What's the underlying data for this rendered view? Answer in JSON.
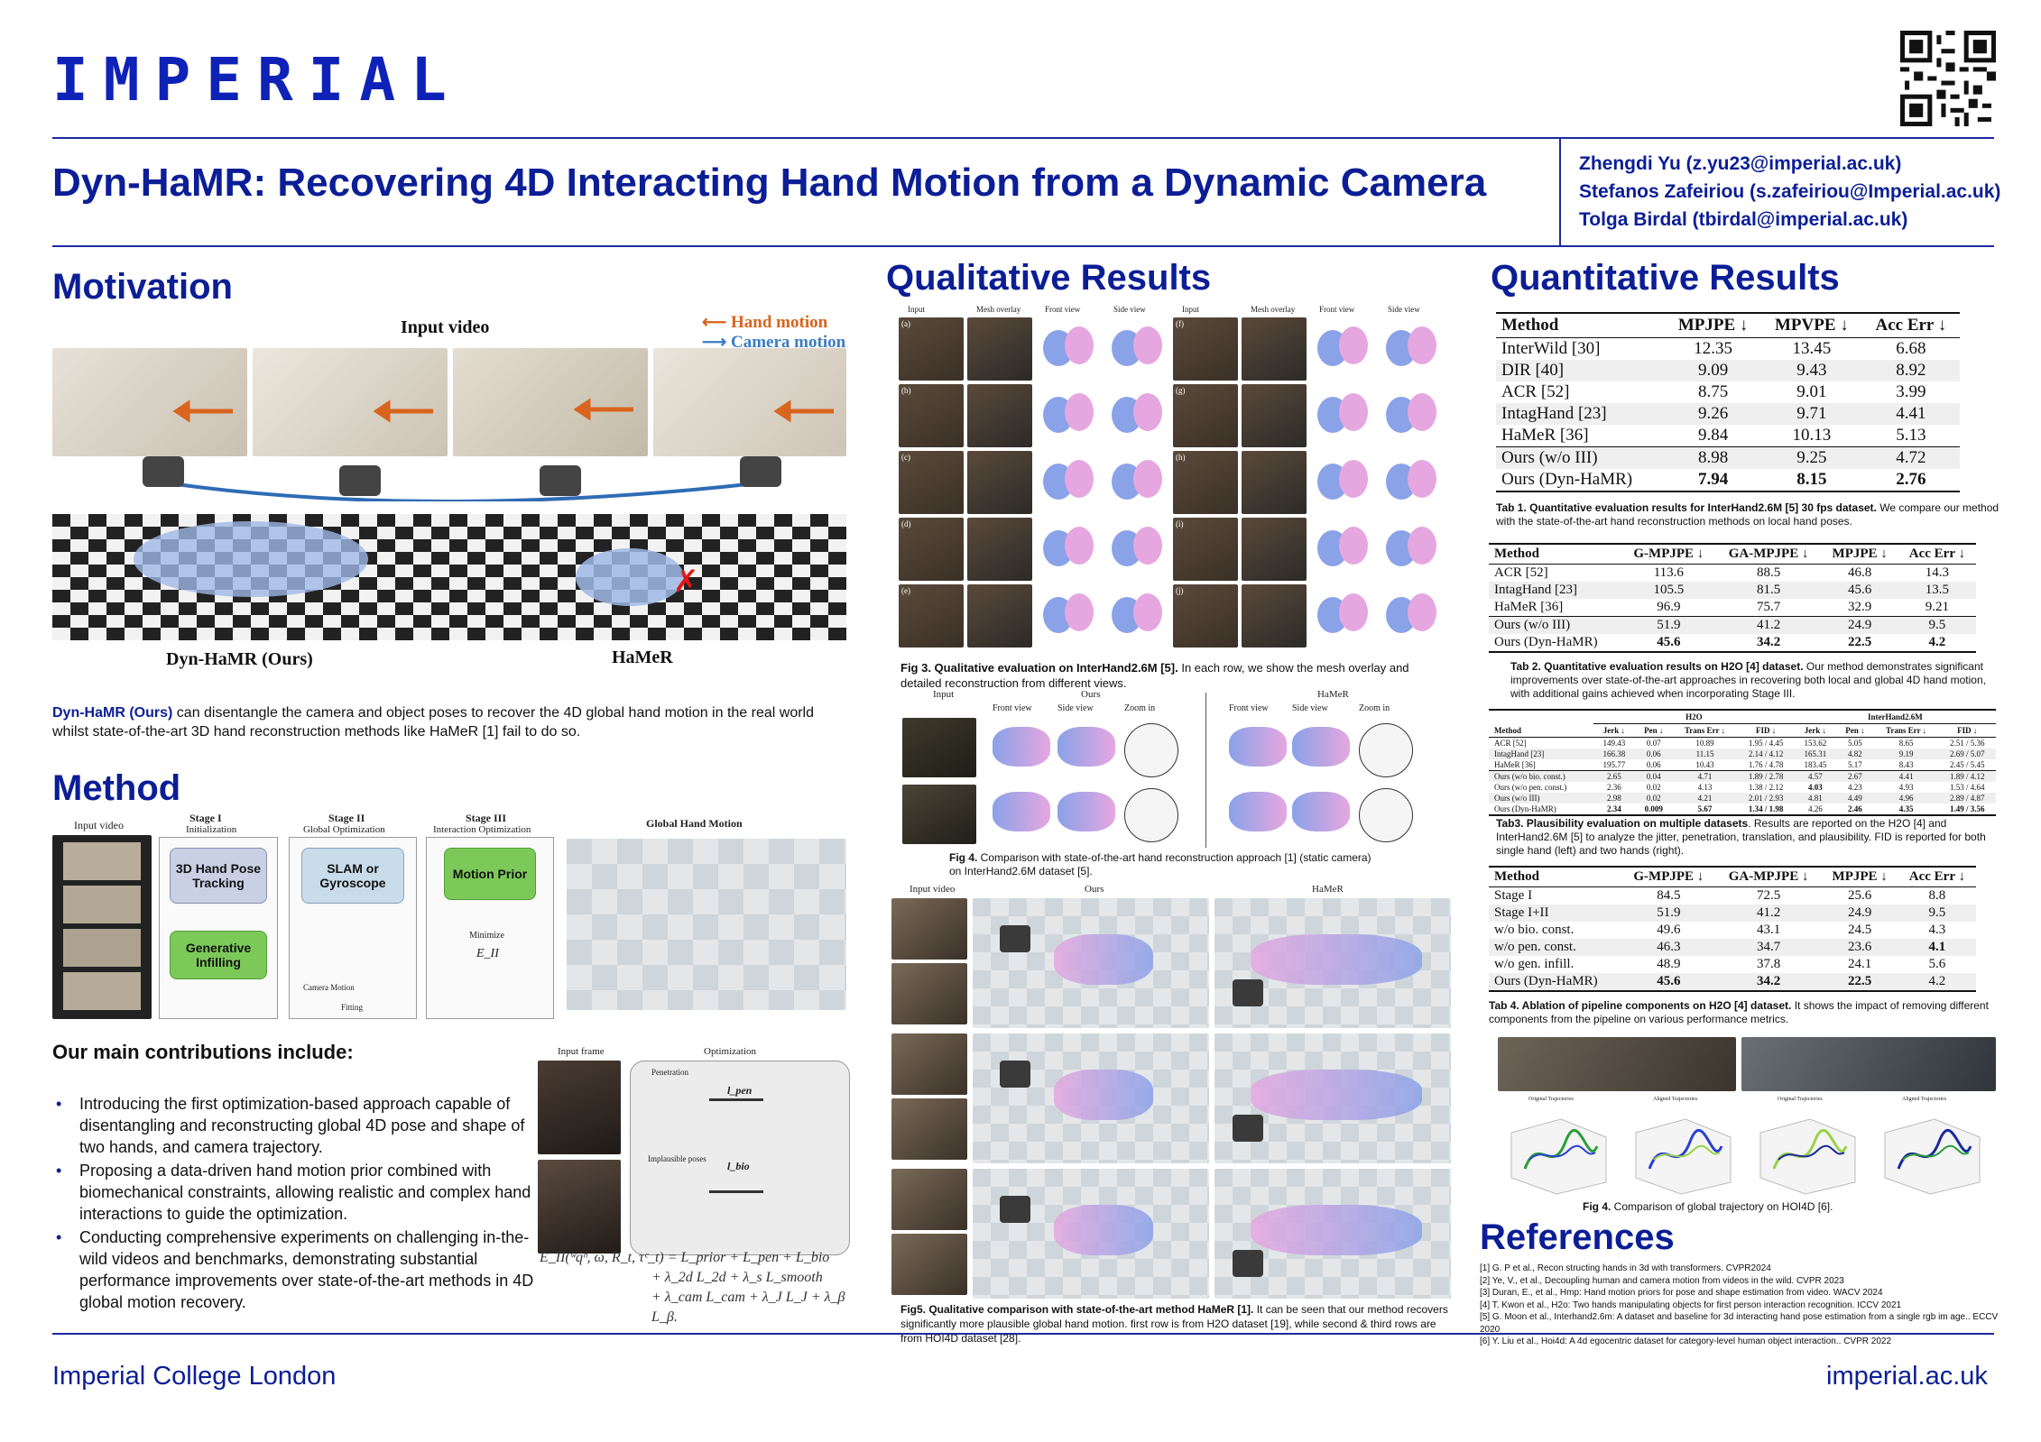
{
  "header": {
    "logo": "IMPERIAL",
    "title": "Dyn-HaMR: Recovering 4D Interacting Hand Motion from a Dynamic Camera",
    "authors": [
      "Zhengdi Yu (z.yu23@imperial.ac.uk)",
      "Stefanos Zafeiriou (s.zafeiriou@Imperial.ac.uk)",
      "Tolga Birdal (tbirdal@imperial.ac.uk)"
    ]
  },
  "motivation": {
    "heading": "Motivation",
    "figure_title": "Input video",
    "legend_hand": "Hand motion",
    "legend_camera": "Camera motion",
    "label_ours": "Dyn-HaMR (Ours)",
    "label_hamer": "HaMeR",
    "text_highlight": "Dyn-HaMR (Ours)",
    "text_rest": " can disentangle the camera and object poses to recover the 4D global hand motion in the real world whilst state-of-the-art 3D hand reconstruction methods like HaMeR [1] fail to do so."
  },
  "method": {
    "heading": "Method",
    "input_label": "Input video",
    "stage1_title": "Stage I",
    "stage1_sub": "Initialization",
    "stage1_box1": "3D Hand Pose Tracking",
    "stage1_box2": "Generative Infilling",
    "stage2_title": "Stage II",
    "stage2_sub": "Global Optimization",
    "stage2_box": "SLAM or Gyroscope",
    "stage2_cam": "Camera Motion",
    "stage2_fit": "Fitting",
    "stage3_title": "Stage III",
    "stage3_sub": "Interaction Optimization",
    "stage3_box": "Motion Prior",
    "stage3_min": "Minimize",
    "stage3_e": "E_II",
    "global_label": "Global Hand Motion",
    "opt_input_label": "Input frame",
    "opt_label": "Optimization",
    "opt_pen": "Penetration",
    "opt_implausible": "Implausible poses",
    "opt_lpen": "l_pen",
    "opt_lbio": "l_bio",
    "equation_lines": [
      "E_II(ʷqʰ, ω, R_t, τᶜ_t) = L_prior + L_pen + L_bio",
      "+ λ_2d L_2d + λ_s L_smooth",
      "+ λ_cam L_cam + λ_J L_J + λ_β L_β."
    ]
  },
  "contributions": {
    "heading": "Our main contributions include:",
    "items": [
      "Introducing the first optimization-based approach capable of disentangling and reconstructing global 4D pose and shape of two hands, and camera trajectory.",
      "Proposing a data-driven hand motion prior combined with biomechanical constraints, allowing realistic and complex hand interactions to guide the optimization.",
      "Conducting comprehensive experiments on challenging in-the-wild videos and benchmarks, demonstrating substantial performance improvements over state-of-the-art methods in 4D global motion recovery."
    ]
  },
  "qualitative": {
    "heading": "Qualitative Results",
    "fig3_cols": [
      "Input",
      "Mesh overlay",
      "Front view",
      "Side view",
      "Input",
      "Mesh overlay",
      "Front view",
      "Side view"
    ],
    "fig3_rows_left": [
      "(a)",
      "(b)",
      "(c)",
      "(d)",
      "(e)"
    ],
    "fig3_rows_right": [
      "(f)",
      "(g)",
      "(h)",
      "(i)",
      "(j)"
    ],
    "fig3_caption_bold": "Fig 3. Qualitative evaluation on InterHand2.6M [5].",
    "fig3_caption_rest": " In each row, we show the mesh overlay and detailed reconstruction from different views.",
    "fig4_group_ours": "Ours",
    "fig4_group_hamer": "HaMeR",
    "fig4_input": "Input",
    "fig4_cols": [
      "Front view",
      "Side view",
      "Zoom in",
      "Front view",
      "Side view",
      "Zoom in"
    ],
    "fig4_caption_bold": "Fig 4.",
    "fig4_caption_rest": " Comparison with state-of-the-art hand reconstruction approach [1] (static camera) on InterHand2.6M dataset [5].",
    "fig5_cols": [
      "Input video",
      "Ours",
      "HaMeR"
    ],
    "fig5_caption_bold": "Fig5. Qualitative comparison with state-of-the-art method HaMeR [1].",
    "fig5_caption_rest": " It can be seen that our method recovers significantly more plausible global hand motion. first row is from H2O dataset [19], while second & third rows are from HOI4D dataset [28]."
  },
  "quantitative": {
    "heading": "Quantitative Results",
    "tab1": {
      "headers": [
        "Method",
        "MPJPE ↓",
        "MPVPE ↓",
        "Acc Err ↓"
      ],
      "rows": [
        [
          "InterWild [30]",
          "12.35",
          "13.45",
          "6.68"
        ],
        [
          "DIR [40]",
          "9.09",
          "9.43",
          "8.92"
        ],
        [
          "ACR [52]",
          "8.75",
          "9.01",
          "3.99"
        ],
        [
          "IntagHand [23]",
          "9.26",
          "9.71",
          "4.41"
        ],
        [
          "HaMeR [36]",
          "9.84",
          "10.13",
          "5.13"
        ],
        [
          "Ours (w/o III)",
          "8.98",
          "9.25",
          "4.72"
        ],
        [
          "Ours (Dyn-HaMR)",
          "7.94",
          "8.15",
          "2.76"
        ]
      ],
      "caption_bold": "Tab 1. Quantitative evaluation results for InterHand2.6M [5] 30 fps dataset.",
      "caption_rest": " We compare our method with the state-of-the-art hand reconstruction methods on local hand poses."
    },
    "tab2": {
      "headers": [
        "Method",
        "G-MPJPE ↓",
        "GA-MPJPE ↓",
        "MPJPE ↓",
        "Acc Err ↓"
      ],
      "rows": [
        [
          "ACR [52]",
          "113.6",
          "88.5",
          "46.8",
          "14.3"
        ],
        [
          "IntagHand [23]",
          "105.5",
          "81.5",
          "45.6",
          "13.5"
        ],
        [
          "HaMeR [36]",
          "96.9",
          "75.7",
          "32.9",
          "9.21"
        ],
        [
          "Ours (w/o III)",
          "51.9",
          "41.2",
          "24.9",
          "9.5"
        ],
        [
          "Ours (Dyn-HaMR)",
          "45.6",
          "34.2",
          "22.5",
          "4.2"
        ]
      ],
      "caption_bold": "Tab 2. Quantitative evaluation results on H2O [4] dataset.",
      "caption_rest": " Our method demonstrates significant improvements over state-of-the-art approaches in recovering both local and global 4D hand motion, with additional gains achieved when incorporating Stage III."
    },
    "tab3": {
      "group_h2o": "H2O",
      "group_ih": "InterHand2.6M",
      "headers": [
        "Method",
        "Jerk ↓",
        "Pen ↓",
        "Trans Err ↓",
        "FID ↓",
        "Jerk ↓",
        "Pen ↓",
        "Trans Err ↓",
        "FID ↓"
      ],
      "rows": [
        [
          "ACR [52]",
          "149.43",
          "0.07",
          "10.89",
          "1.95 / 4.45",
          "153.62",
          "5.05",
          "8.65",
          "2.51 / 5.36"
        ],
        [
          "IntagHand [23]",
          "166.38",
          "0.06",
          "11.15",
          "2.14 / 4.12",
          "165.31",
          "4.82",
          "9.19",
          "2.69 / 5.07"
        ],
        [
          "HaMeR [36]",
          "195.77",
          "0.06",
          "10.43",
          "1.76 / 4.78",
          "183.45",
          "5.17",
          "8.43",
          "2.45 / 5.45"
        ],
        [
          "Ours (w/o bio. const.)",
          "2.65",
          "0.04",
          "4.71",
          "1.89 / 2.78",
          "4.57",
          "2.67",
          "4.41",
          "1.89 / 4.12"
        ],
        [
          "Ours (w/o pen. const.)",
          "2.36",
          "0.02",
          "4.13",
          "1.38 / 2.12",
          "4.03",
          "4.23",
          "4.93",
          "1.53 / 4.64"
        ],
        [
          "Ours (w/o III)",
          "2.98",
          "0.02",
          "4.21",
          "2.01 / 2.93",
          "4.81",
          "4.49",
          "4.96",
          "2.89 / 4.87"
        ],
        [
          "Ours (Dyn-HaMR)",
          "2.34",
          "0.009",
          "5.67",
          "1.34 / 1.98",
          "4.26",
          "2.46",
          "4.35",
          "1.49 / 3.56"
        ]
      ],
      "caption_bold": "Tab3. Plausibility evaluation on multiple datasets",
      "caption_rest": ". Results are reported on the H2O [4] and InterHand2.6M [5] to analyze the jitter, penetration, translation, and plausibility. FID is reported for both single hand (left) and two hands (right)."
    },
    "tab4": {
      "headers": [
        "Method",
        "G-MPJPE ↓",
        "GA-MPJPE ↓",
        "MPJPE ↓",
        "Acc Err ↓"
      ],
      "rows": [
        [
          "Stage I",
          "84.5",
          "72.5",
          "25.6",
          "8.8"
        ],
        [
          "Stage I+II",
          "51.9",
          "41.2",
          "24.9",
          "9.5"
        ],
        [
          "w/o bio. const.",
          "49.6",
          "43.1",
          "24.5",
          "4.3"
        ],
        [
          "w/o pen. const.",
          "46.3",
          "34.7",
          "23.6",
          "4.1"
        ],
        [
          "w/o gen. infill.",
          "48.9",
          "37.8",
          "24.1",
          "5.6"
        ],
        [
          "Ours (Dyn-HaMR)",
          "45.6",
          "34.2",
          "22.5",
          "4.2"
        ]
      ],
      "caption_bold": "Tab 4. Ablation of pipeline components on H2O [4] dataset.",
      "caption_rest": " It shows the impact of removing different components from the pipeline on various performance metrics."
    },
    "fig_traj_titles": [
      "Original Trajectories",
      "Aligned Trajectories",
      "Original Trajectories",
      "Aligned Trajectories"
    ],
    "fig_traj_caption_bold": "Fig 4.",
    "fig_traj_caption_rest": " Comparison of global trajectory on HOI4D [6]."
  },
  "references": {
    "heading": "References",
    "items": [
      "[1] G. P et al., Recon structing hands in 3d with transformers. CVPR2024",
      "[2] Ye, V., et al., Decoupling human and camera motion from videos in the wild. CVPR 2023",
      "[3] Duran, E., et al., Hmp: Hand motion priors for pose and shape estimation from video. WACV 2024",
      "[4] T. Kwon et al., H2o: Two hands manipulating objects for first person interaction recognition. ICCV 2021",
      "[5] G. Moon et al., Interhand2.6m: A dataset and baseline for 3d interacting hand pose estimation from a single rgb im age.. ECCV 2020",
      "[6] Y. Liu et al., Hoi4d: A 4d egocentric dataset for category-level human object interaction.. CVPR 2022"
    ]
  },
  "footer": {
    "left": "Imperial College London",
    "right": "imperial.ac.uk"
  },
  "colors": {
    "brand": "#0b1e96",
    "hand_motion": "#d9641e",
    "camera_motion": "#3a7cc5",
    "hand_pink": "#e6a7e0",
    "hand_blue": "#8aa2e8"
  }
}
